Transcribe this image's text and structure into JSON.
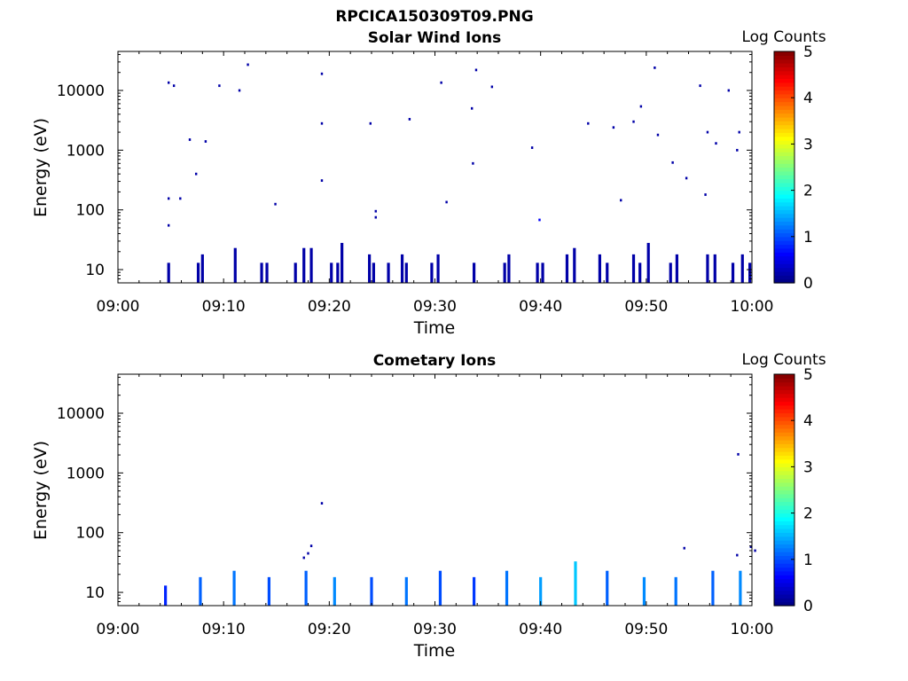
{
  "figure_title": "RPCICA150309T09.PNG",
  "colorbar": {
    "label": "Log Counts",
    "ticks": [
      "0",
      "1",
      "2",
      "3",
      "4",
      "5"
    ],
    "range": [
      0,
      5
    ],
    "colormap": "jet"
  },
  "chart_data": [
    {
      "type": "heatmap",
      "title": "Solar Wind Ions",
      "xlabel": "Time",
      "ylabel": "Energy (eV)",
      "xlim": [
        "09:00",
        "10:00"
      ],
      "x_ticks": [
        "09:00",
        "09:10",
        "09:20",
        "09:30",
        "09:40",
        "09:50",
        "10:00"
      ],
      "ylim": [
        6,
        45000
      ],
      "yscale": "log",
      "y_ticks": [
        "10",
        "100",
        "1000",
        "10000"
      ],
      "grid": false,
      "colorbar": "right",
      "low_energy_bursts": [
        {
          "t": "09:04.8",
          "emax": 13,
          "level": 0.2
        },
        {
          "t": "09:07.6",
          "emax": 13,
          "level": 0.2
        },
        {
          "t": "09:08.0",
          "emax": 18,
          "level": 0.2
        },
        {
          "t": "09:11.1",
          "emax": 23,
          "level": 0.2
        },
        {
          "t": "09:13.6",
          "emax": 13,
          "level": 0.2
        },
        {
          "t": "09:14.1",
          "emax": 13,
          "level": 0.2
        },
        {
          "t": "09:16.8",
          "emax": 13,
          "level": 0.2
        },
        {
          "t": "09:17.6",
          "emax": 23,
          "level": 0.2
        },
        {
          "t": "09:18.3",
          "emax": 23,
          "level": 0.2
        },
        {
          "t": "09:20.2",
          "emax": 13,
          "level": 0.2
        },
        {
          "t": "09:20.8",
          "emax": 13,
          "level": 0.2
        },
        {
          "t": "09:21.2",
          "emax": 28,
          "level": 0.2
        },
        {
          "t": "09:23.8",
          "emax": 18,
          "level": 0.2
        },
        {
          "t": "09:24.2",
          "emax": 13,
          "level": 0.2
        },
        {
          "t": "09:25.6",
          "emax": 13,
          "level": 0.2
        },
        {
          "t": "09:26.9",
          "emax": 18,
          "level": 0.2
        },
        {
          "t": "09:27.3",
          "emax": 13,
          "level": 0.2
        },
        {
          "t": "09:29.7",
          "emax": 13,
          "level": 0.2
        },
        {
          "t": "09:30.3",
          "emax": 18,
          "level": 0.2
        },
        {
          "t": "09:33.7",
          "emax": 13,
          "level": 0.2
        },
        {
          "t": "09:36.6",
          "emax": 13,
          "level": 0.2
        },
        {
          "t": "09:37.0",
          "emax": 18,
          "level": 0.2
        },
        {
          "t": "09:39.7",
          "emax": 13,
          "level": 0.2
        },
        {
          "t": "09:40.2",
          "emax": 13,
          "level": 0.2
        },
        {
          "t": "09:42.5",
          "emax": 18,
          "level": 0.2
        },
        {
          "t": "09:43.2",
          "emax": 23,
          "level": 0.2
        },
        {
          "t": "09:45.6",
          "emax": 18,
          "level": 0.2
        },
        {
          "t": "09:46.3",
          "emax": 13,
          "level": 0.2
        },
        {
          "t": "09:48.8",
          "emax": 18,
          "level": 0.2
        },
        {
          "t": "09:49.4",
          "emax": 13,
          "level": 0.2
        },
        {
          "t": "09:50.2",
          "emax": 28,
          "level": 0.2
        },
        {
          "t": "09:52.3",
          "emax": 13,
          "level": 0.2
        },
        {
          "t": "09:52.9",
          "emax": 18,
          "level": 0.2
        },
        {
          "t": "09:55.8",
          "emax": 18,
          "level": 0.2
        },
        {
          "t": "09:56.5",
          "emax": 18,
          "level": 0.2
        },
        {
          "t": "09:58.2",
          "emax": 13,
          "level": 0.2
        },
        {
          "t": "09:59.1",
          "emax": 18,
          "level": 0.2
        },
        {
          "t": "09:59.8",
          "emax": 13,
          "level": 0.2
        }
      ],
      "scattered_counts": [
        {
          "t": "09:04.8",
          "e": 13500,
          "level": 0.2
        },
        {
          "t": "09:05.3",
          "e": 12000,
          "level": 0.2
        },
        {
          "t": "09:09.6",
          "e": 12000,
          "level": 0.2
        },
        {
          "t": "09:11.5",
          "e": 10000,
          "level": 0.2
        },
        {
          "t": "09:12.3",
          "e": 27000,
          "level": 0.2
        },
        {
          "t": "09:19.3",
          "e": 19000,
          "level": 0.2
        },
        {
          "t": "09:30.6",
          "e": 13500,
          "level": 0.2
        },
        {
          "t": "09:33.9",
          "e": 22000,
          "level": 0.2
        },
        {
          "t": "09:35.4",
          "e": 11500,
          "level": 0.2
        },
        {
          "t": "09:50.8",
          "e": 24000,
          "level": 0.2
        },
        {
          "t": "09:55.1",
          "e": 12000,
          "level": 0.2
        },
        {
          "t": "09:57.8",
          "e": 10000,
          "level": 0.2
        },
        {
          "t": "09:19.3",
          "e": 2800,
          "level": 0.2
        },
        {
          "t": "09:23.9",
          "e": 2800,
          "level": 0.2
        },
        {
          "t": "09:27.6",
          "e": 3300,
          "level": 0.2
        },
        {
          "t": "09:33.5",
          "e": 5000,
          "level": 0.2
        },
        {
          "t": "09:44.5",
          "e": 2800,
          "level": 0.2
        },
        {
          "t": "09:46.9",
          "e": 2400,
          "level": 0.2
        },
        {
          "t": "09:48.8",
          "e": 3000,
          "level": 0.2
        },
        {
          "t": "09:49.5",
          "e": 5400,
          "level": 0.2
        },
        {
          "t": "09:51.1",
          "e": 1800,
          "level": 0.2
        },
        {
          "t": "09:55.8",
          "e": 2000,
          "level": 0.2
        },
        {
          "t": "09:58.8",
          "e": 2000,
          "level": 0.2
        },
        {
          "t": "09:06.8",
          "e": 1500,
          "level": 0.2
        },
        {
          "t": "09:08.3",
          "e": 1400,
          "level": 0.2
        },
        {
          "t": "09:39.2",
          "e": 1100,
          "level": 0.2
        },
        {
          "t": "09:56.6",
          "e": 1300,
          "level": 0.2
        },
        {
          "t": "09:58.6",
          "e": 1000,
          "level": 0.2
        },
        {
          "t": "09:07.4",
          "e": 400,
          "level": 0.2
        },
        {
          "t": "09:33.6",
          "e": 600,
          "level": 0.2
        },
        {
          "t": "09:52.5",
          "e": 620,
          "level": 0.2
        },
        {
          "t": "09:53.8",
          "e": 340,
          "level": 0.2
        },
        {
          "t": "09:19.3",
          "e": 310,
          "level": 0.2
        },
        {
          "t": "09:04.8",
          "e": 155,
          "level": 0.2
        },
        {
          "t": "09:05.9",
          "e": 155,
          "level": 0.2
        },
        {
          "t": "09:55.6",
          "e": 180,
          "level": 0.2
        },
        {
          "t": "09:47.6",
          "e": 145,
          "level": 0.2
        },
        {
          "t": "09:14.9",
          "e": 125,
          "level": 0.2
        },
        {
          "t": "09:31.1",
          "e": 135,
          "level": 0.2
        },
        {
          "t": "09:24.4",
          "e": 95,
          "level": 0.2
        },
        {
          "t": "09:24.4",
          "e": 75,
          "level": 0.2
        },
        {
          "t": "09:39.9",
          "e": 68,
          "level": 0.6
        },
        {
          "t": "09:04.8",
          "e": 55,
          "level": 0.2
        }
      ]
    },
    {
      "type": "heatmap",
      "title": "Cometary Ions",
      "xlabel": "Time",
      "ylabel": "Energy (eV)",
      "xlim": [
        "09:00",
        "10:00"
      ],
      "x_ticks": [
        "09:00",
        "09:10",
        "09:20",
        "09:30",
        "09:40",
        "09:50",
        "10:00"
      ],
      "ylim": [
        6,
        45000
      ],
      "yscale": "log",
      "y_ticks": [
        "10",
        "100",
        "1000",
        "10000"
      ],
      "grid": false,
      "colorbar": "right",
      "low_energy_bursts": [
        {
          "t": "09:04.5",
          "emax": 13,
          "level": 0.8
        },
        {
          "t": "09:07.8",
          "emax": 18,
          "level": 1.1
        },
        {
          "t": "09:11.0",
          "emax": 23,
          "level": 1.2
        },
        {
          "t": "09:14.3",
          "emax": 18,
          "level": 1.0
        },
        {
          "t": "09:17.8",
          "emax": 23,
          "level": 1.1
        },
        {
          "t": "09:20.5",
          "emax": 18,
          "level": 1.3
        },
        {
          "t": "09:24.0",
          "emax": 18,
          "level": 1.0
        },
        {
          "t": "09:27.3",
          "emax": 18,
          "level": 1.2
        },
        {
          "t": "09:30.5",
          "emax": 23,
          "level": 1.0
        },
        {
          "t": "09:33.7",
          "emax": 18,
          "level": 0.9
        },
        {
          "t": "09:36.8",
          "emax": 23,
          "level": 1.2
        },
        {
          "t": "09:40.0",
          "emax": 18,
          "level": 1.4
        },
        {
          "t": "09:43.3",
          "emax": 33,
          "level": 1.6
        },
        {
          "t": "09:46.3",
          "emax": 23,
          "level": 1.1
        },
        {
          "t": "09:49.8",
          "emax": 18,
          "level": 1.3
        },
        {
          "t": "09:52.8",
          "emax": 18,
          "level": 1.2
        },
        {
          "t": "09:56.3",
          "emax": 23,
          "level": 1.1
        },
        {
          "t": "09:58.9",
          "emax": 23,
          "level": 1.3
        }
      ],
      "scattered_counts": [
        {
          "t": "09:18.3",
          "e": 60,
          "level": 0.2
        },
        {
          "t": "09:18.0",
          "e": 45,
          "level": 0.2
        },
        {
          "t": "09:17.6",
          "e": 38,
          "level": 0.2
        },
        {
          "t": "09:19.3",
          "e": 310,
          "level": 0.2
        },
        {
          "t": "09:53.6",
          "e": 55,
          "level": 0.2
        },
        {
          "t": "09:58.7",
          "e": 2050,
          "level": 0.2
        },
        {
          "t": "09:58.6",
          "e": 42,
          "level": 0.2
        },
        {
          "t": "09:59.9",
          "e": 58,
          "level": 0.2
        },
        {
          "t": "10:00.3",
          "e": 50,
          "level": 0.2
        }
      ]
    }
  ]
}
